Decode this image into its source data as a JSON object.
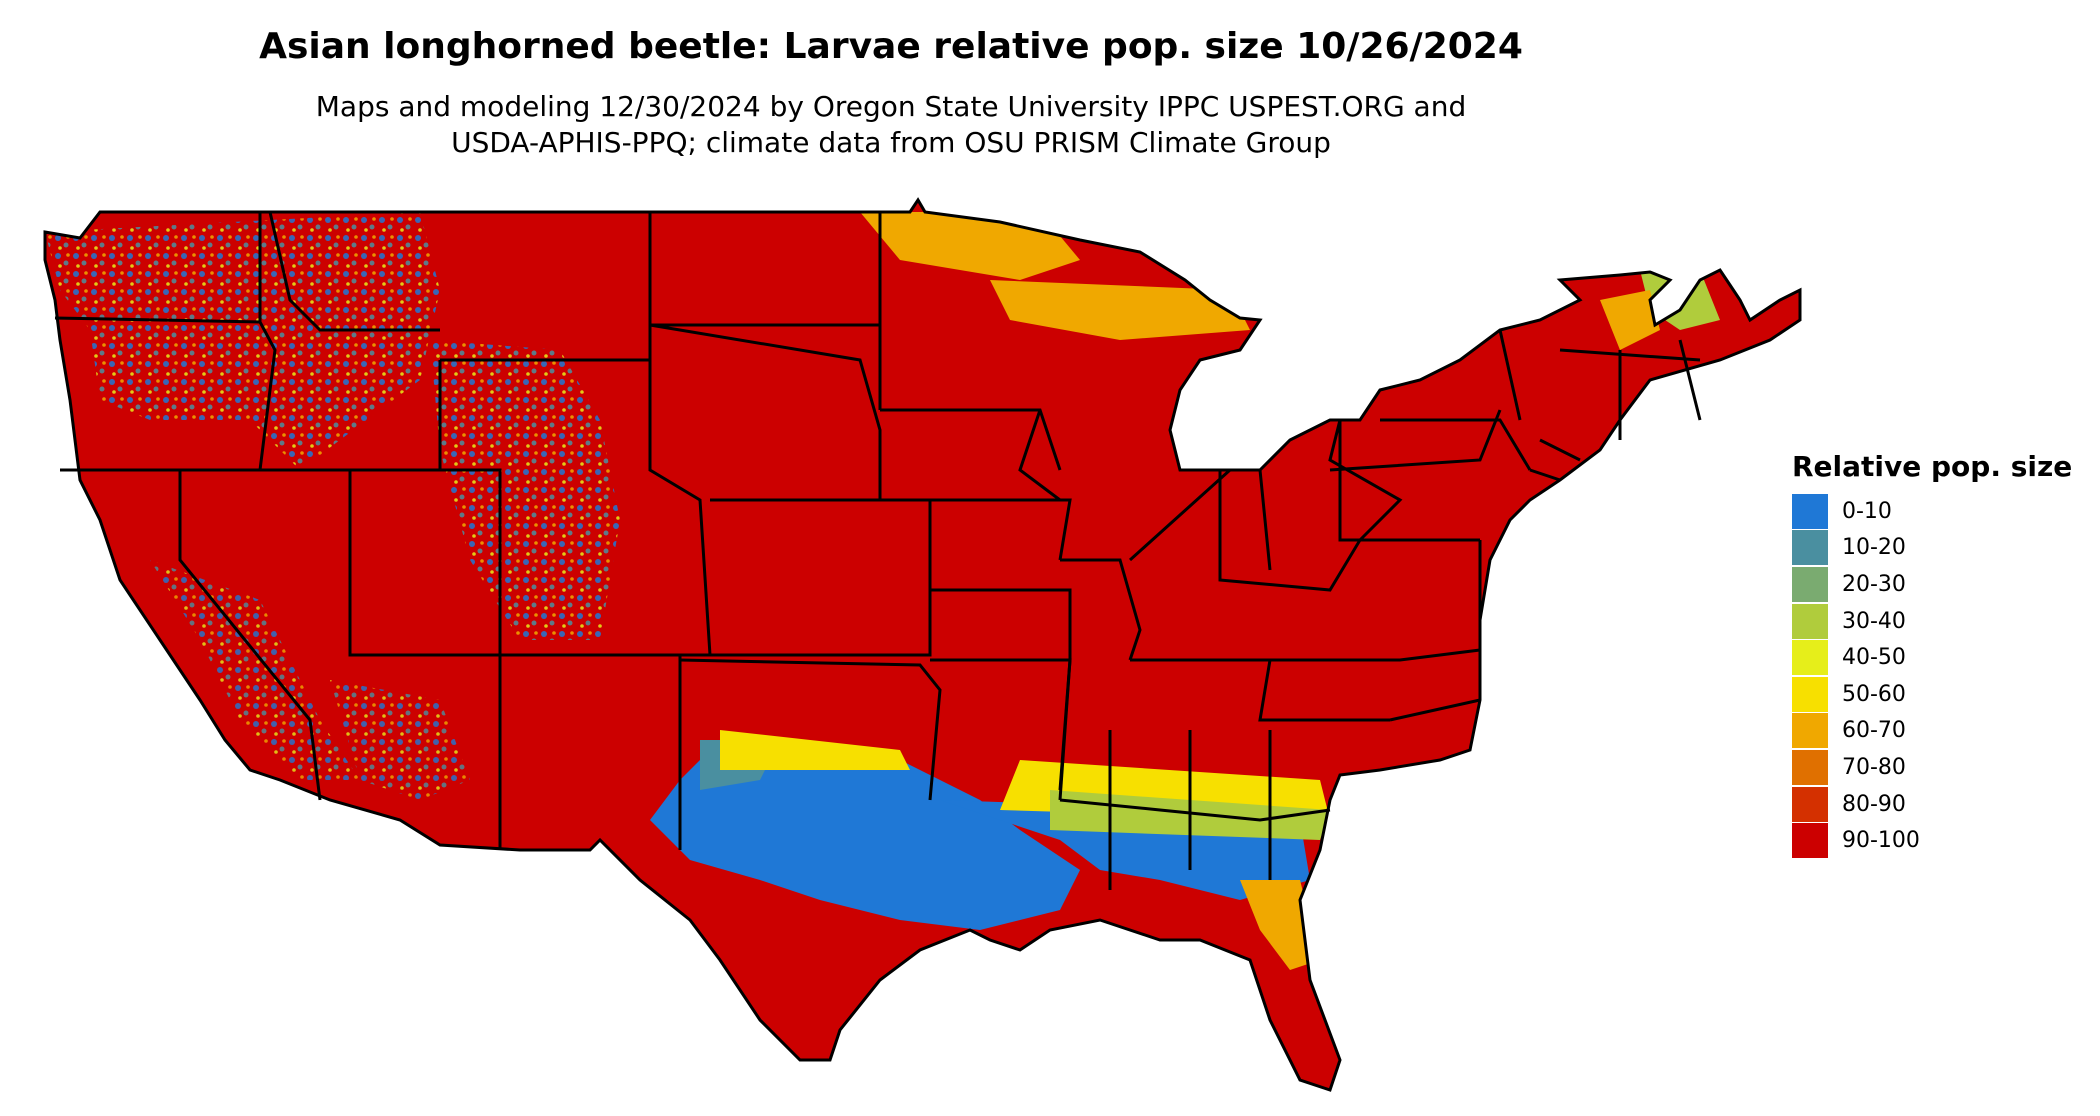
{
  "title": "Asian longhorned beetle: Larvae relative pop. size 10/26/2024",
  "subtitle_line1": "Maps and modeling 12/30/2024 by Oregon State University IPPC USPEST.ORG and",
  "subtitle_line2": "USDA-APHIS-PPQ; climate data from OSU PRISM Climate Group",
  "legend": {
    "title": "Relative pop. size",
    "items": [
      {
        "label": "0-10",
        "color": "#1f78d6"
      },
      {
        "label": "10-20",
        "color": "#4a8fa0"
      },
      {
        "label": "20-30",
        "color": "#7aab70"
      },
      {
        "label": "30-40",
        "color": "#b0cc3c"
      },
      {
        "label": "40-50",
        "color": "#e6ee1a"
      },
      {
        "label": "50-60",
        "color": "#f7e000"
      },
      {
        "label": "60-70",
        "color": "#f0a800"
      },
      {
        "label": "70-80",
        "color": "#e07000"
      },
      {
        "label": "80-90",
        "color": "#d43000"
      },
      {
        "label": "90-100",
        "color": "#cc0000"
      }
    ]
  }
}
